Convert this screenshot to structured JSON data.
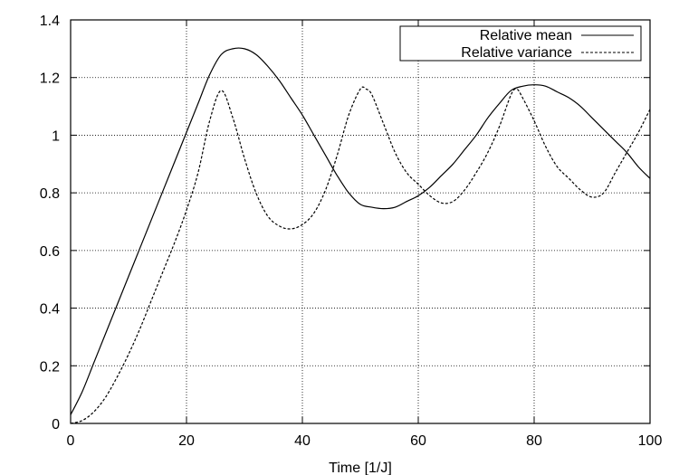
{
  "chart_data": {
    "type": "line",
    "title": "",
    "xlabel": "Time [1/J]",
    "ylabel": "",
    "xlim": [
      0,
      100
    ],
    "ylim": [
      0,
      1.4
    ],
    "x_ticks": [
      0,
      20,
      40,
      60,
      80,
      100
    ],
    "y_ticks": [
      0,
      0.2,
      0.4,
      0.6,
      0.8,
      1,
      1.2,
      1.4
    ],
    "x_tick_labels": [
      "0",
      "20",
      "40",
      "60",
      "80",
      "100"
    ],
    "y_tick_labels": [
      "0",
      "0.2",
      "0.4",
      "0.6",
      "0.8",
      "1",
      "1.2",
      "1.4"
    ],
    "grid": true,
    "legend_position": "top-right",
    "series": [
      {
        "name": "Relative mean",
        "line_style": "solid",
        "color": "#000000",
        "points": [
          [
            0,
            0.03
          ],
          [
            2,
            0.11
          ],
          [
            4,
            0.21
          ],
          [
            6,
            0.31
          ],
          [
            8,
            0.41
          ],
          [
            10,
            0.51
          ],
          [
            12,
            0.61
          ],
          [
            14,
            0.71
          ],
          [
            16,
            0.81
          ],
          [
            18,
            0.91
          ],
          [
            20,
            1.01
          ],
          [
            22,
            1.11
          ],
          [
            24,
            1.21
          ],
          [
            26,
            1.28
          ],
          [
            28,
            1.3
          ],
          [
            30,
            1.3
          ],
          [
            32,
            1.28
          ],
          [
            34,
            1.24
          ],
          [
            36,
            1.19
          ],
          [
            38,
            1.13
          ],
          [
            40,
            1.07
          ],
          [
            42,
            1.0
          ],
          [
            44,
            0.93
          ],
          [
            46,
            0.86
          ],
          [
            48,
            0.8
          ],
          [
            50,
            0.76
          ],
          [
            52,
            0.75
          ],
          [
            54,
            0.745
          ],
          [
            56,
            0.75
          ],
          [
            58,
            0.77
          ],
          [
            60,
            0.79
          ],
          [
            62,
            0.82
          ],
          [
            64,
            0.86
          ],
          [
            66,
            0.9
          ],
          [
            68,
            0.95
          ],
          [
            70,
            1.0
          ],
          [
            72,
            1.06
          ],
          [
            74,
            1.11
          ],
          [
            76,
            1.155
          ],
          [
            78,
            1.17
          ],
          [
            80,
            1.175
          ],
          [
            82,
            1.17
          ],
          [
            84,
            1.15
          ],
          [
            86,
            1.13
          ],
          [
            88,
            1.1
          ],
          [
            90,
            1.06
          ],
          [
            92,
            1.02
          ],
          [
            94,
            0.98
          ],
          [
            96,
            0.94
          ],
          [
            98,
            0.89
          ],
          [
            100,
            0.85
          ]
        ]
      },
      {
        "name": "Relative variance",
        "line_style": "dashed",
        "color": "#000000",
        "points": [
          [
            0,
            0.0
          ],
          [
            2,
            0.01
          ],
          [
            4,
            0.04
          ],
          [
            6,
            0.09
          ],
          [
            8,
            0.16
          ],
          [
            10,
            0.24
          ],
          [
            12,
            0.33
          ],
          [
            14,
            0.43
          ],
          [
            16,
            0.53
          ],
          [
            18,
            0.63
          ],
          [
            20,
            0.74
          ],
          [
            22,
            0.87
          ],
          [
            24,
            1.05
          ],
          [
            26,
            1.155
          ],
          [
            28,
            1.06
          ],
          [
            30,
            0.92
          ],
          [
            32,
            0.8
          ],
          [
            34,
            0.72
          ],
          [
            36,
            0.685
          ],
          [
            38,
            0.675
          ],
          [
            40,
            0.69
          ],
          [
            42,
            0.73
          ],
          [
            44,
            0.81
          ],
          [
            46,
            0.93
          ],
          [
            48,
            1.07
          ],
          [
            50,
            1.16
          ],
          [
            51,
            1.16
          ],
          [
            52,
            1.14
          ],
          [
            54,
            1.04
          ],
          [
            56,
            0.94
          ],
          [
            58,
            0.87
          ],
          [
            60,
            0.83
          ],
          [
            62,
            0.79
          ],
          [
            64,
            0.765
          ],
          [
            66,
            0.77
          ],
          [
            68,
            0.81
          ],
          [
            70,
            0.87
          ],
          [
            72,
            0.94
          ],
          [
            74,
            1.03
          ],
          [
            76,
            1.14
          ],
          [
            77,
            1.16
          ],
          [
            78,
            1.13
          ],
          [
            80,
            1.05
          ],
          [
            82,
            0.96
          ],
          [
            84,
            0.89
          ],
          [
            86,
            0.85
          ],
          [
            88,
            0.81
          ],
          [
            90,
            0.785
          ],
          [
            92,
            0.8
          ],
          [
            94,
            0.87
          ],
          [
            96,
            0.94
          ],
          [
            98,
            1.01
          ],
          [
            100,
            1.09
          ]
        ]
      }
    ]
  }
}
